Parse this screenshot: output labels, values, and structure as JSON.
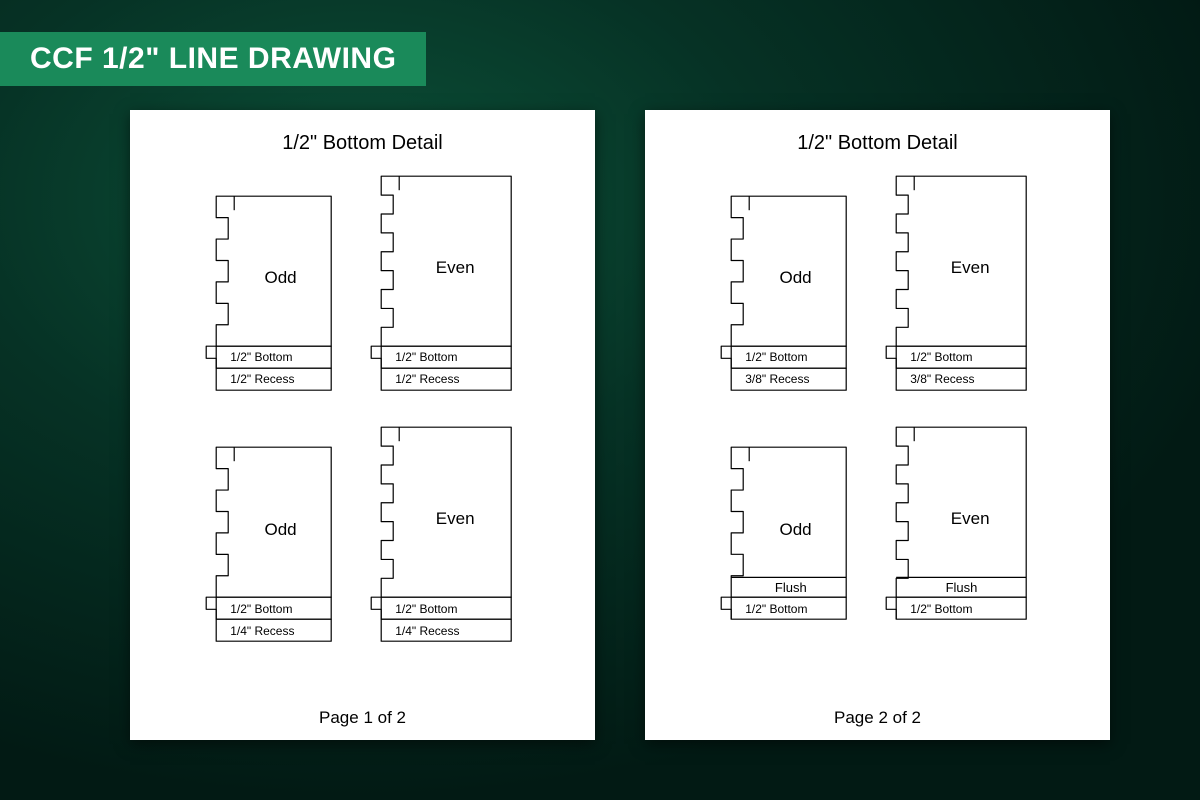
{
  "header": {
    "title": "CCF 1/2\" LINE DRAWING"
  },
  "colors": {
    "header_bg": "#1a8a5a",
    "sheet_bg": "#ffffff",
    "stroke": "#000000",
    "bg_gradient_inner": "#0c5138",
    "bg_gradient_mid": "#063225",
    "bg_gradient_outer": "#021a14"
  },
  "drawing": {
    "stroke_width": 1.2,
    "odd_teeth": 3,
    "even_teeth": 4,
    "odd_width": 115,
    "even_width": 130,
    "body_height_short": 150,
    "body_height_tall": 170,
    "tooth_depth": 12,
    "strip_height": 22,
    "recess_nub_width": 10
  },
  "sheets": [
    {
      "title": "1/2\" Bottom Detail",
      "footer": "Page 1 of 2",
      "rows": [
        {
          "pieces": [
            {
              "kind": "odd",
              "label": "Odd",
              "strips": [
                "1/2\" Bottom",
                "1/2\" Recess"
              ],
              "layout": "normal",
              "tall": false
            },
            {
              "kind": "even",
              "label": "Even",
              "strips": [
                "1/2\" Bottom",
                "1/2\" Recess"
              ],
              "layout": "normal",
              "tall": true
            }
          ]
        },
        {
          "pieces": [
            {
              "kind": "odd",
              "label": "Odd",
              "strips": [
                "1/2\" Bottom",
                "1/4\" Recess"
              ],
              "layout": "normal",
              "tall": false
            },
            {
              "kind": "even",
              "label": "Even",
              "strips": [
                "1/2\" Bottom",
                "1/4\" Recess"
              ],
              "layout": "normal",
              "tall": true
            }
          ]
        }
      ]
    },
    {
      "title": "1/2\" Bottom Detail",
      "footer": "Page 2 of 2",
      "rows": [
        {
          "pieces": [
            {
              "kind": "odd",
              "label": "Odd",
              "strips": [
                "1/2\" Bottom",
                "3/8\" Recess"
              ],
              "layout": "normal",
              "tall": false
            },
            {
              "kind": "even",
              "label": "Even",
              "strips": [
                "1/2\" Bottom",
                "3/8\" Recess"
              ],
              "layout": "normal",
              "tall": true
            }
          ]
        },
        {
          "pieces": [
            {
              "kind": "odd",
              "label": "Odd",
              "strips": [
                "Flush",
                "1/2\" Bottom"
              ],
              "layout": "flush",
              "tall": false
            },
            {
              "kind": "even",
              "label": "Even",
              "strips": [
                "Flush",
                "1/2\" Bottom"
              ],
              "layout": "flush",
              "tall": true
            }
          ]
        }
      ]
    }
  ]
}
